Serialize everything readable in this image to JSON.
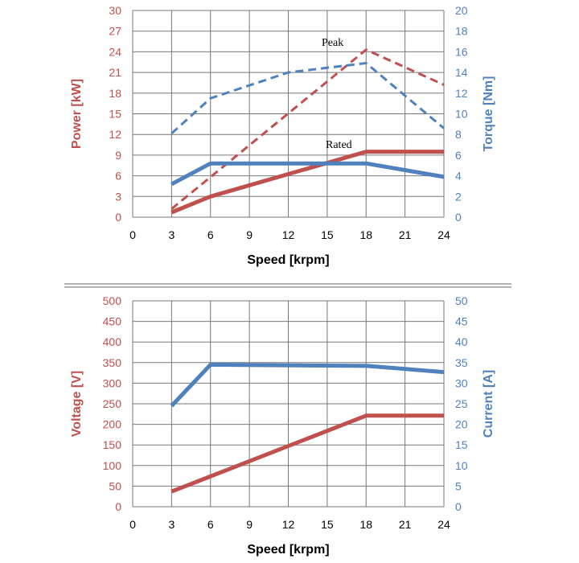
{
  "colors": {
    "red": "#c0504d",
    "blue": "#4f81bd",
    "grid": "#777777",
    "separator": "#999999"
  },
  "chart_data": [
    {
      "type": "line",
      "xlabel": "Speed [krpm]",
      "ylabel": "Power [kW]",
      "y2label": "Torque [Nm]",
      "xlim": [
        0,
        24
      ],
      "ylim": [
        0,
        30
      ],
      "y2lim": [
        0,
        20
      ],
      "xticks": [
        "0",
        "3",
        "6",
        "9",
        "12",
        "15",
        "18",
        "21",
        "24"
      ],
      "yticks": [
        "0",
        "3",
        "6",
        "9",
        "12",
        "15",
        "18",
        "21",
        "24",
        "27",
        "30"
      ],
      "y2ticks": [
        "0",
        "2",
        "4",
        "6",
        "8",
        "10",
        "12",
        "14",
        "16",
        "18",
        "20"
      ],
      "grid": true,
      "annotations": [
        {
          "text": "Peak"
        },
        {
          "text": "Rated"
        }
      ],
      "series": [
        {
          "axis": "left",
          "color": "red",
          "dash": true,
          "x": [
            3,
            18,
            24
          ],
          "values": [
            1.2,
            24.3,
            19.2
          ]
        },
        {
          "axis": "right",
          "color": "blue",
          "dash": true,
          "x": [
            3,
            6,
            12,
            18,
            24
          ],
          "values": [
            8.1,
            11.5,
            14.0,
            14.9,
            8.6
          ]
        },
        {
          "axis": "left",
          "color": "red",
          "dash": false,
          "x": [
            3,
            6,
            18,
            24
          ],
          "values": [
            0.7,
            3.0,
            9.5,
            9.5
          ]
        },
        {
          "axis": "right",
          "color": "blue",
          "dash": false,
          "x": [
            3,
            6,
            18,
            24
          ],
          "values": [
            3.2,
            5.2,
            5.2,
            3.9
          ]
        }
      ]
    },
    {
      "type": "line",
      "xlabel": "Speed [krpm]",
      "ylabel": "Voltage [V]",
      "y2label": "Current [A]",
      "xlim": [
        0,
        24
      ],
      "ylim": [
        0,
        500
      ],
      "y2lim": [
        0,
        50
      ],
      "xticks": [
        "0",
        "3",
        "6",
        "9",
        "12",
        "15",
        "18",
        "21",
        "24"
      ],
      "yticks": [
        "0",
        "50",
        "100",
        "150",
        "200",
        "250",
        "300",
        "350",
        "400",
        "450",
        "500"
      ],
      "y2ticks": [
        "0",
        "5",
        "10",
        "15",
        "20",
        "25",
        "30",
        "35",
        "40",
        "45",
        "50"
      ],
      "grid": true,
      "annotations": [],
      "series": [
        {
          "axis": "left",
          "color": "red",
          "dash": false,
          "x": [
            3,
            18,
            24
          ],
          "values": [
            37,
            221,
            221
          ]
        },
        {
          "axis": "right",
          "color": "blue",
          "dash": false,
          "x": [
            3,
            6,
            18,
            24
          ],
          "values": [
            24.5,
            34.5,
            34.2,
            32.7
          ]
        }
      ]
    }
  ]
}
